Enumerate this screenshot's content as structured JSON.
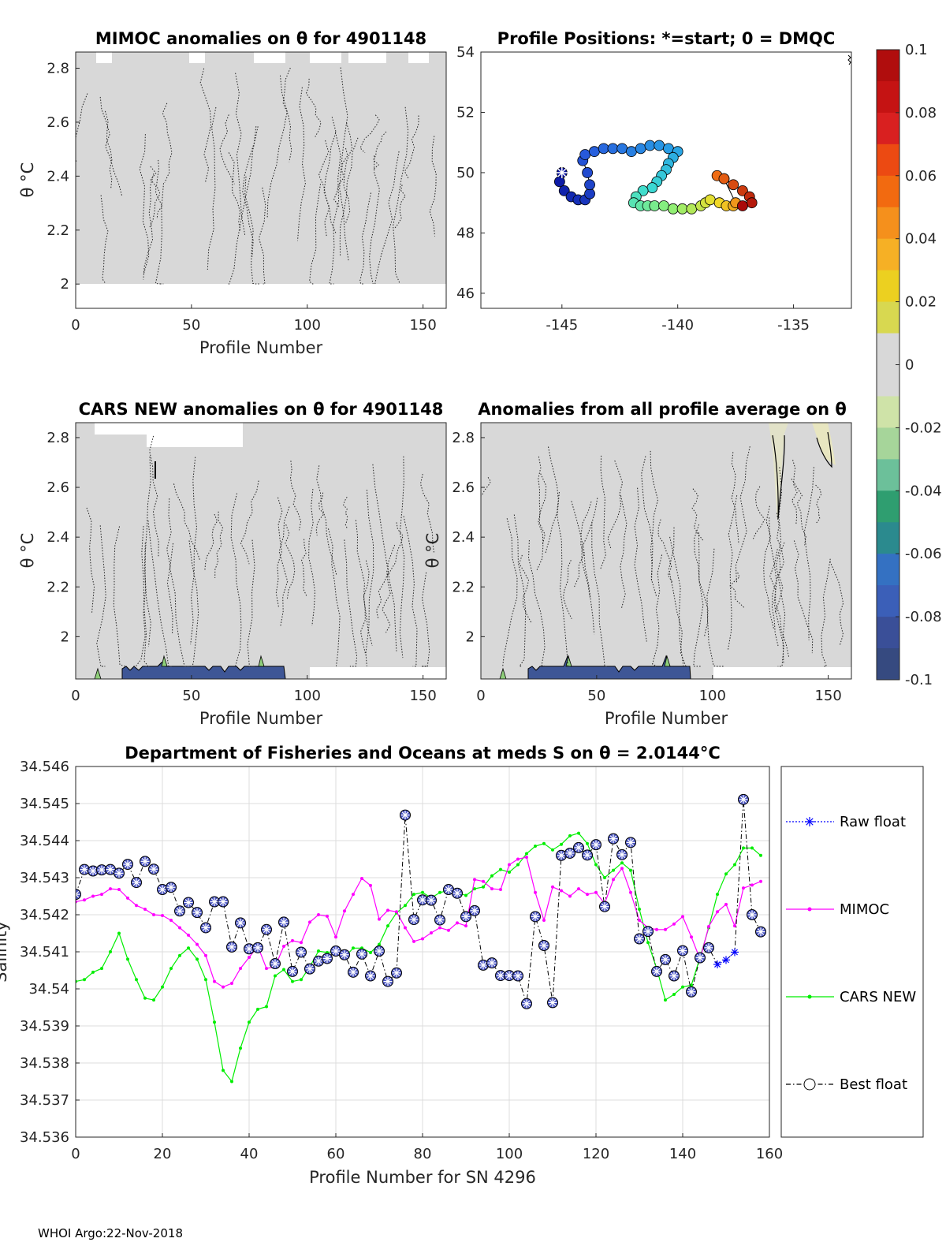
{
  "footer": "WHOI Argo:22-Nov-2018",
  "panels": {
    "mimoc": {
      "title": "MIMOC anomalies on θ  for 4901148",
      "xlabel": "Profile Number",
      "ylabel": "θ °C",
      "xticks": [
        "0",
        "50",
        "100",
        "150"
      ],
      "yticks": [
        "2",
        "2.2",
        "2.4",
        "2.6",
        "2.8"
      ]
    },
    "positions": {
      "title": "Profile Positions: *=start; 0 = DMQC",
      "xticks": [
        "-145",
        "-140",
        "-135"
      ],
      "yticks": [
        "46",
        "48",
        "50",
        "52",
        "54"
      ]
    },
    "cars": {
      "title": "CARS NEW anomalies on θ for 4901148",
      "xlabel": "Profile Number",
      "ylabel": "θ °C",
      "xticks": [
        "0",
        "50",
        "100",
        "150"
      ],
      "yticks": [
        "2",
        "2.2",
        "2.4",
        "2.6",
        "2.8"
      ]
    },
    "allavg": {
      "title": "Anomalies from all profile average on θ",
      "xlabel": "Profile Number",
      "ylabel": "θ °C",
      "xticks": [
        "0",
        "50",
        "100",
        "150"
      ],
      "yticks": [
        "2",
        "2.2",
        "2.4",
        "2.6",
        "2.8"
      ]
    }
  },
  "colorbar": {
    "ticks": [
      "0.1",
      "0.08",
      "0.06",
      "0.04",
      "0.02",
      "0",
      "-0.02",
      "-0.04",
      "-0.06",
      "-0.08",
      "-0.1"
    ],
    "colors": [
      "#b20f0f",
      "#d81a1a",
      "#f04a10",
      "#f7a020",
      "#ecd31a",
      "#d8d8d8",
      "#cde3a0",
      "#6ab8a0",
      "#2a9e6e",
      "#3e6ec6",
      "#36497e"
    ]
  },
  "colors": {
    "raw": "#0000ff",
    "mimoc": "#ff00ff",
    "cars": "#00ee00",
    "best": "#000000",
    "marker_fill": "#4b56c4",
    "field": "#d8d8d8"
  },
  "chart_data": [
    {
      "type": "heatmap",
      "panel": "mimoc",
      "title": "MIMOC anomalies on θ  for 4901148",
      "xlabel": "Profile Number",
      "ylabel": "θ °C",
      "xlim": [
        0,
        160
      ],
      "ylim": [
        1.91,
        2.86
      ],
      "color_range": [
        -0.1,
        0.1
      ],
      "description_values": "anomalies near 0 everywhere (grey)"
    },
    {
      "type": "scatter",
      "panel": "positions",
      "title": "Profile Positions: *=start; 0 = DMQC",
      "xlim": [
        -148.5,
        -132.5
      ],
      "ylim": [
        45.5,
        54
      ],
      "x": [
        -145.0,
        -145.1,
        -144.9,
        -144.6,
        -144.3,
        -144.0,
        -143.8,
        -143.8,
        -143.9,
        -144.1,
        -144.0,
        -143.6,
        -143.2,
        -142.8,
        -142.4,
        -142.0,
        -141.6,
        -141.2,
        -140.8,
        -140.4,
        -140.0,
        -140.2,
        -140.4,
        -140.5,
        -140.7,
        -140.9,
        -141.1,
        -141.5,
        -141.8,
        -141.9,
        -141.6,
        -141.3,
        -141.0,
        -140.6,
        -140.2,
        -139.8,
        -139.4,
        -139.0,
        -138.8,
        -138.6,
        -138.2,
        -137.9,
        -137.6,
        -137.5,
        -138.0,
        -138.3,
        -138.0,
        -137.6,
        -137.2,
        -136.9,
        -136.8,
        -137.2
      ],
      "y": [
        50.0,
        49.7,
        49.4,
        49.2,
        49.1,
        49.1,
        49.3,
        49.6,
        50.0,
        50.4,
        50.6,
        50.7,
        50.8,
        50.8,
        50.8,
        50.7,
        50.8,
        50.9,
        50.9,
        50.8,
        50.7,
        50.5,
        50.3,
        50.1,
        49.9,
        49.7,
        49.5,
        49.4,
        49.2,
        49.0,
        48.9,
        48.9,
        48.9,
        48.9,
        48.8,
        48.8,
        48.8,
        48.9,
        49.0,
        49.1,
        49.0,
        48.9,
        48.9,
        49.0,
        49.8,
        49.9,
        49.8,
        49.6,
        49.4,
        49.2,
        49.0,
        48.9
      ],
      "start": [
        -145.0,
        50.0
      ]
    },
    {
      "type": "heatmap",
      "panel": "cars",
      "title": "CARS NEW anomalies on θ for 4901148",
      "xlabel": "Profile Number",
      "ylabel": "θ °C",
      "xlim": [
        0,
        160
      ],
      "ylim": [
        1.83,
        2.86
      ],
      "color_range": [
        -0.1,
        0.1
      ]
    },
    {
      "type": "heatmap",
      "panel": "allavg",
      "title": "Anomalies from all profile average on θ",
      "xlabel": "Profile Number",
      "ylabel": "θ °C",
      "xlim": [
        0,
        160
      ],
      "ylim": [
        1.83,
        2.86
      ],
      "color_range": [
        -0.1,
        0.1
      ]
    },
    {
      "type": "line",
      "panel": "salinity",
      "title": "Department of Fisheries and Oceans at meds S on θ = 2.0144°C",
      "xlabel": "Profile Number for SN 4296",
      "ylabel": "Salinity",
      "xlim": [
        0,
        160
      ],
      "ylim": [
        34.536,
        34.546
      ],
      "xticks": [
        "0",
        "20",
        "40",
        "60",
        "80",
        "100",
        "120",
        "140",
        "160"
      ],
      "yticks": [
        "34.536",
        "34.537",
        "34.538",
        "34.539",
        "34.54",
        "34.541",
        "34.542",
        "34.543",
        "34.544",
        "34.545",
        "34.546"
      ],
      "legend": [
        "Raw float",
        "MIMOC",
        "CARS NEW",
        "Best float"
      ],
      "legend_position": "outside-right",
      "grid": true,
      "series": [
        {
          "name": "Best float",
          "x": [
            0,
            2,
            4,
            6,
            8,
            10,
            12,
            14,
            16,
            18,
            20,
            22,
            24,
            26,
            28,
            30,
            32,
            34,
            36,
            38,
            40,
            42,
            44,
            46,
            48,
            50,
            52,
            54,
            56,
            58,
            60,
            62,
            64,
            66,
            68,
            70,
            72,
            74,
            76,
            78,
            80,
            82,
            84,
            86,
            88,
            90,
            92,
            94,
            96,
            98,
            100,
            102,
            104,
            106,
            108,
            110,
            112,
            114,
            116,
            118,
            120,
            122,
            124,
            126,
            128,
            130,
            132,
            134,
            136,
            138,
            140,
            142,
            144,
            146,
            148,
            150,
            152,
            154,
            156,
            158
          ],
          "values": [
            34.54255,
            34.54322,
            34.54318,
            34.54321,
            34.54322,
            34.54312,
            34.54336,
            34.54287,
            34.54344,
            34.54323,
            34.54268,
            34.54274,
            34.5421,
            34.54233,
            34.54206,
            34.54165,
            34.54235,
            34.54235,
            34.54113,
            34.54178,
            34.54108,
            34.54111,
            34.5416,
            34.54068,
            34.5418,
            34.54047,
            34.54099,
            34.54054,
            34.54075,
            34.54082,
            34.54102,
            34.54092,
            34.54045,
            34.54094,
            34.54035,
            34.54102,
            34.5402,
            34.54043,
            34.54469,
            34.54187,
            34.5424,
            34.54239,
            34.54186,
            34.54268,
            34.54258,
            34.54195,
            34.54211,
            34.54064,
            34.5407,
            34.54036,
            34.54036,
            34.54035,
            34.5396,
            34.54195,
            34.54117,
            34.53963,
            34.5436,
            34.54366,
            34.54381,
            34.54361,
            34.54389,
            34.54222,
            34.54405,
            34.54362,
            34.54395,
            34.54135,
            34.54155,
            34.54047,
            34.54079,
            34.54035,
            34.54103,
            34.53992,
            34.54084,
            34.54111,
            34.54066,
            34.54078,
            34.54099,
            34.54511,
            34.542,
            34.54154
          ]
        },
        {
          "name": "Raw float",
          "x": [
            148,
            150,
            152
          ],
          "values": [
            34.54066,
            34.54078,
            34.54099
          ]
        },
        {
          "name": "MIMOC",
          "x": [
            0,
            2,
            4,
            6,
            8,
            10,
            12,
            14,
            16,
            18,
            20,
            22,
            24,
            26,
            28,
            30,
            32,
            34,
            36,
            38,
            40,
            42,
            44,
            46,
            48,
            50,
            52,
            54,
            56,
            58,
            60,
            62,
            64,
            66,
            68,
            70,
            72,
            74,
            76,
            78,
            80,
            82,
            84,
            86,
            88,
            90,
            92,
            94,
            96,
            98,
            100,
            102,
            104,
            106,
            108,
            110,
            112,
            114,
            116,
            118,
            120,
            122,
            124,
            126,
            128,
            130,
            132,
            134,
            136,
            138,
            140,
            142,
            144,
            146,
            148,
            150,
            152,
            154,
            156,
            158
          ],
          "values": [
            34.54235,
            34.5424,
            34.5425,
            34.54255,
            34.5427,
            34.54268,
            34.54245,
            34.54225,
            34.54215,
            34.542,
            34.54198,
            34.54185,
            34.54165,
            34.54145,
            34.5412,
            34.5409,
            34.5402,
            34.54005,
            34.54015,
            34.54055,
            34.54085,
            34.54115,
            34.54055,
            34.5406,
            34.54115,
            34.5413,
            34.54125,
            34.5418,
            34.542,
            34.54196,
            34.5414,
            34.5421,
            34.54255,
            34.54298,
            34.54279,
            34.54188,
            34.54212,
            34.54208,
            34.54165,
            34.54128,
            34.54135,
            34.54151,
            34.54165,
            34.54158,
            34.54178,
            34.5417,
            34.54295,
            34.5429,
            34.5427,
            34.54268,
            34.54335,
            34.5435,
            34.54355,
            34.5426,
            34.54185,
            34.54275,
            34.54265,
            34.5425,
            34.5427,
            34.54255,
            34.5426,
            34.5423,
            34.54295,
            34.54325,
            34.5426,
            34.54185,
            34.54165,
            34.5416,
            34.5416,
            34.54175,
            34.54195,
            34.5414,
            34.5408,
            34.54168,
            34.54208,
            34.54228,
            34.5417,
            34.54272,
            34.5428,
            34.5429
          ]
        },
        {
          "name": "CARS NEW",
          "x": [
            0,
            2,
            4,
            6,
            8,
            10,
            12,
            14,
            16,
            18,
            20,
            22,
            24,
            26,
            28,
            30,
            32,
            34,
            36,
            38,
            40,
            42,
            44,
            46,
            48,
            50,
            52,
            54,
            56,
            58,
            60,
            62,
            64,
            66,
            68,
            70,
            72,
            74,
            76,
            78,
            80,
            82,
            84,
            86,
            88,
            90,
            92,
            94,
            96,
            98,
            100,
            102,
            104,
            106,
            108,
            110,
            112,
            114,
            116,
            118,
            120,
            122,
            124,
            126,
            128,
            130,
            132,
            134,
            136,
            138,
            140,
            142,
            144,
            146,
            148,
            150,
            152,
            154,
            156,
            158
          ],
          "values": [
            34.5402,
            34.54025,
            34.54045,
            34.54055,
            34.541,
            34.5415,
            34.5408,
            34.54025,
            34.53975,
            34.5397,
            34.54005,
            34.54055,
            34.5409,
            34.5411,
            34.5408,
            34.54025,
            34.5391,
            34.5378,
            34.5375,
            34.5384,
            34.5391,
            34.53945,
            34.53952,
            34.54035,
            34.54052,
            34.5402,
            34.54025,
            34.5406,
            34.54102,
            34.54098,
            34.54102,
            34.54085,
            34.5411,
            34.5411,
            34.54098,
            34.5412,
            34.5417,
            34.54205,
            34.54225,
            34.54255,
            34.5426,
            34.54245,
            34.5426,
            34.54265,
            34.5426,
            34.54252,
            34.5427,
            34.54275,
            34.54305,
            34.54322,
            34.54315,
            34.54335,
            34.54365,
            34.54385,
            34.54392,
            34.54375,
            34.5439,
            34.54413,
            34.5442,
            34.54392,
            34.54335,
            34.543,
            34.5432,
            34.5434,
            34.5432,
            34.54215,
            34.54125,
            34.54055,
            34.5397,
            34.53985,
            34.54005,
            34.5401,
            34.54085,
            34.54165,
            34.54255,
            34.5431,
            34.54335,
            34.5438,
            34.5438,
            34.5436
          ]
        }
      ]
    }
  ]
}
